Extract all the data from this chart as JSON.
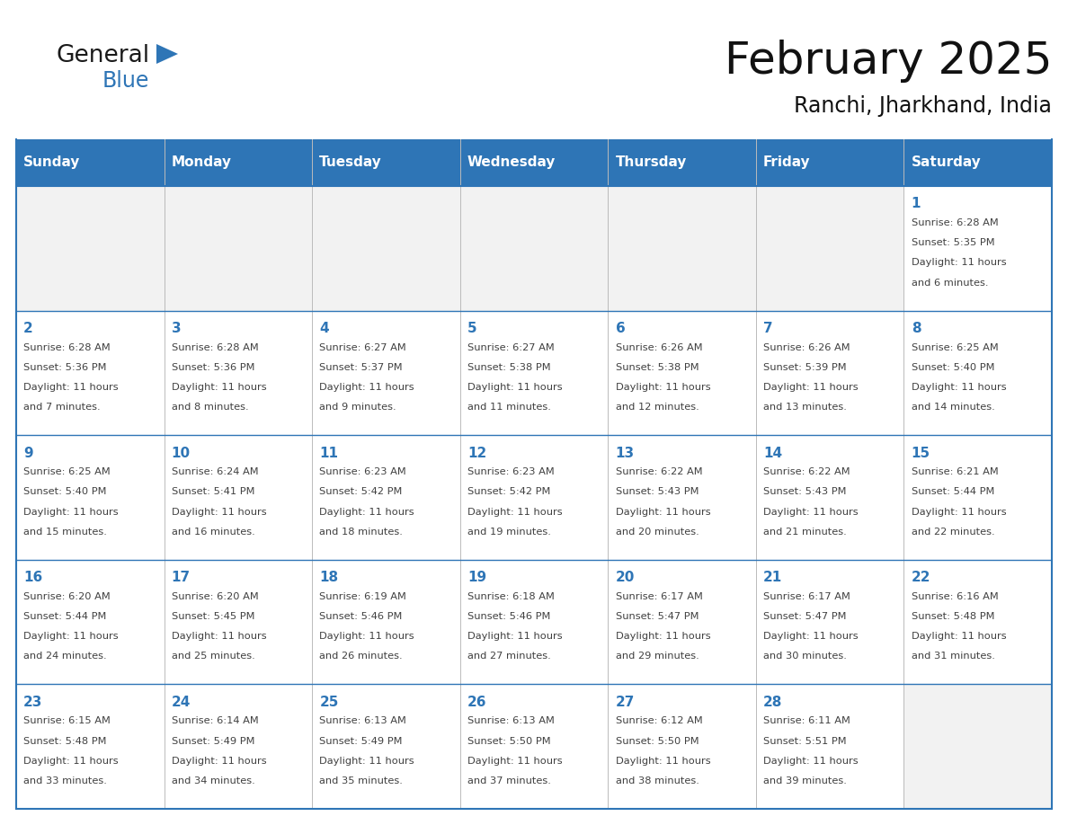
{
  "title": "February 2025",
  "subtitle": "Ranchi, Jharkhand, India",
  "header_bg": "#2E75B6",
  "header_text_color": "#FFFFFF",
  "days_of_week": [
    "Sunday",
    "Monday",
    "Tuesday",
    "Wednesday",
    "Thursday",
    "Friday",
    "Saturday"
  ],
  "border_color": "#2E75B6",
  "day_num_color": "#2E75B6",
  "text_color": "#404040",
  "empty_cell_bg": "#F2F2F2",
  "filled_cell_bg": "#FFFFFF",
  "calendar_data": [
    [
      null,
      null,
      null,
      null,
      null,
      null,
      {
        "day": "1",
        "sunrise": "6:28 AM",
        "sunset": "5:35 PM",
        "daylight": "11 hours and 6 minutes."
      }
    ],
    [
      {
        "day": "2",
        "sunrise": "6:28 AM",
        "sunset": "5:36 PM",
        "daylight": "11 hours and 7 minutes."
      },
      {
        "day": "3",
        "sunrise": "6:28 AM",
        "sunset": "5:36 PM",
        "daylight": "11 hours and 8 minutes."
      },
      {
        "day": "4",
        "sunrise": "6:27 AM",
        "sunset": "5:37 PM",
        "daylight": "11 hours and 9 minutes."
      },
      {
        "day": "5",
        "sunrise": "6:27 AM",
        "sunset": "5:38 PM",
        "daylight": "11 hours and 11 minutes."
      },
      {
        "day": "6",
        "sunrise": "6:26 AM",
        "sunset": "5:38 PM",
        "daylight": "11 hours and 12 minutes."
      },
      {
        "day": "7",
        "sunrise": "6:26 AM",
        "sunset": "5:39 PM",
        "daylight": "11 hours and 13 minutes."
      },
      {
        "day": "8",
        "sunrise": "6:25 AM",
        "sunset": "5:40 PM",
        "daylight": "11 hours and 14 minutes."
      }
    ],
    [
      {
        "day": "9",
        "sunrise": "6:25 AM",
        "sunset": "5:40 PM",
        "daylight": "11 hours and 15 minutes."
      },
      {
        "day": "10",
        "sunrise": "6:24 AM",
        "sunset": "5:41 PM",
        "daylight": "11 hours and 16 minutes."
      },
      {
        "day": "11",
        "sunrise": "6:23 AM",
        "sunset": "5:42 PM",
        "daylight": "11 hours and 18 minutes."
      },
      {
        "day": "12",
        "sunrise": "6:23 AM",
        "sunset": "5:42 PM",
        "daylight": "11 hours and 19 minutes."
      },
      {
        "day": "13",
        "sunrise": "6:22 AM",
        "sunset": "5:43 PM",
        "daylight": "11 hours and 20 minutes."
      },
      {
        "day": "14",
        "sunrise": "6:22 AM",
        "sunset": "5:43 PM",
        "daylight": "11 hours and 21 minutes."
      },
      {
        "day": "15",
        "sunrise": "6:21 AM",
        "sunset": "5:44 PM",
        "daylight": "11 hours and 22 minutes."
      }
    ],
    [
      {
        "day": "16",
        "sunrise": "6:20 AM",
        "sunset": "5:44 PM",
        "daylight": "11 hours and 24 minutes."
      },
      {
        "day": "17",
        "sunrise": "6:20 AM",
        "sunset": "5:45 PM",
        "daylight": "11 hours and 25 minutes."
      },
      {
        "day": "18",
        "sunrise": "6:19 AM",
        "sunset": "5:46 PM",
        "daylight": "11 hours and 26 minutes."
      },
      {
        "day": "19",
        "sunrise": "6:18 AM",
        "sunset": "5:46 PM",
        "daylight": "11 hours and 27 minutes."
      },
      {
        "day": "20",
        "sunrise": "6:17 AM",
        "sunset": "5:47 PM",
        "daylight": "11 hours and 29 minutes."
      },
      {
        "day": "21",
        "sunrise": "6:17 AM",
        "sunset": "5:47 PM",
        "daylight": "11 hours and 30 minutes."
      },
      {
        "day": "22",
        "sunrise": "6:16 AM",
        "sunset": "5:48 PM",
        "daylight": "11 hours and 31 minutes."
      }
    ],
    [
      {
        "day": "23",
        "sunrise": "6:15 AM",
        "sunset": "5:48 PM",
        "daylight": "11 hours and 33 minutes."
      },
      {
        "day": "24",
        "sunrise": "6:14 AM",
        "sunset": "5:49 PM",
        "daylight": "11 hours and 34 minutes."
      },
      {
        "day": "25",
        "sunrise": "6:13 AM",
        "sunset": "5:49 PM",
        "daylight": "11 hours and 35 minutes."
      },
      {
        "day": "26",
        "sunrise": "6:13 AM",
        "sunset": "5:50 PM",
        "daylight": "11 hours and 37 minutes."
      },
      {
        "day": "27",
        "sunrise": "6:12 AM",
        "sunset": "5:50 PM",
        "daylight": "11 hours and 38 minutes."
      },
      {
        "day": "28",
        "sunrise": "6:11 AM",
        "sunset": "5:51 PM",
        "daylight": "11 hours and 39 minutes."
      },
      null
    ]
  ],
  "logo_text1": "General",
  "logo_text2": "Blue",
  "logo_color1": "#1a1a1a",
  "logo_color2": "#2E75B6",
  "logo_triangle_color": "#2E75B6",
  "title_fontsize": 36,
  "subtitle_fontsize": 17,
  "header_fontsize": 11,
  "day_num_fontsize": 11,
  "cell_text_fontsize": 8.2
}
